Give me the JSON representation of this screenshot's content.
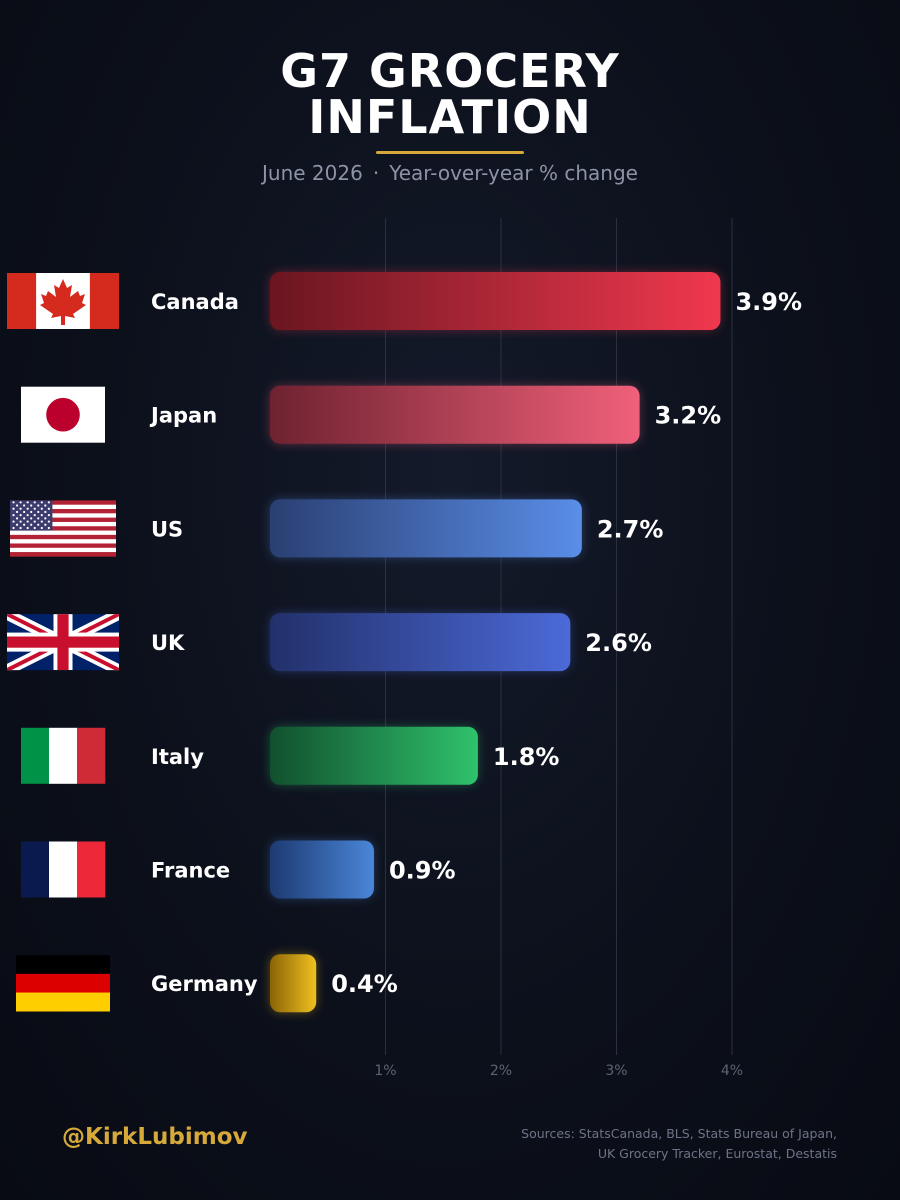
{
  "header": {
    "title_line1": "G7 GROCERY",
    "title_line2": "INFLATION",
    "subtitle_date": "June 2026",
    "subtitle_separator": "·",
    "subtitle_measure": "Year-over-year % change"
  },
  "chart_data": {
    "type": "bar",
    "orientation": "horizontal",
    "categories": [
      "Canada",
      "Japan",
      "US",
      "UK",
      "Italy",
      "France",
      "Germany"
    ],
    "values": [
      3.9,
      3.2,
      2.7,
      2.6,
      1.8,
      0.9,
      0.4
    ],
    "value_labels": [
      "3.9%",
      "3.2%",
      "2.7%",
      "2.6%",
      "1.8%",
      "0.9%",
      "0.4%"
    ],
    "x_ticks": [
      1,
      2,
      3,
      4
    ],
    "x_tick_labels": [
      "1%",
      "2%",
      "3%",
      "4%"
    ],
    "xlim": [
      0,
      4.1
    ],
    "grid": "vertical",
    "bar_colors": [
      [
        "#6a1620",
        "#f0384e"
      ],
      [
        "#6e2230",
        "#f0607a"
      ],
      [
        "#2a3f72",
        "#5a8ee8"
      ],
      [
        "#22306a",
        "#4c6ad8"
      ],
      [
        "#11502e",
        "#2fc26c"
      ],
      [
        "#1d3a72",
        "#4a86d8"
      ],
      [
        "#8a6406",
        "#f0c020"
      ]
    ],
    "flags": [
      "canada-flag",
      "japan-flag",
      "us-flag",
      "uk-flag",
      "italy-flag",
      "france-flag",
      "germany-flag"
    ]
  },
  "footer": {
    "handle": "@KirkLubimov",
    "sources_line1": "Sources: StatsCanada, BLS, Stats Bureau of Japan,",
    "sources_line2": "UK Grocery Tracker, Eurostat, Destatis"
  },
  "colors": {
    "accent_gold": "#d6a93a",
    "gridline": "#2a3040",
    "tick_label": "#5d6375"
  }
}
